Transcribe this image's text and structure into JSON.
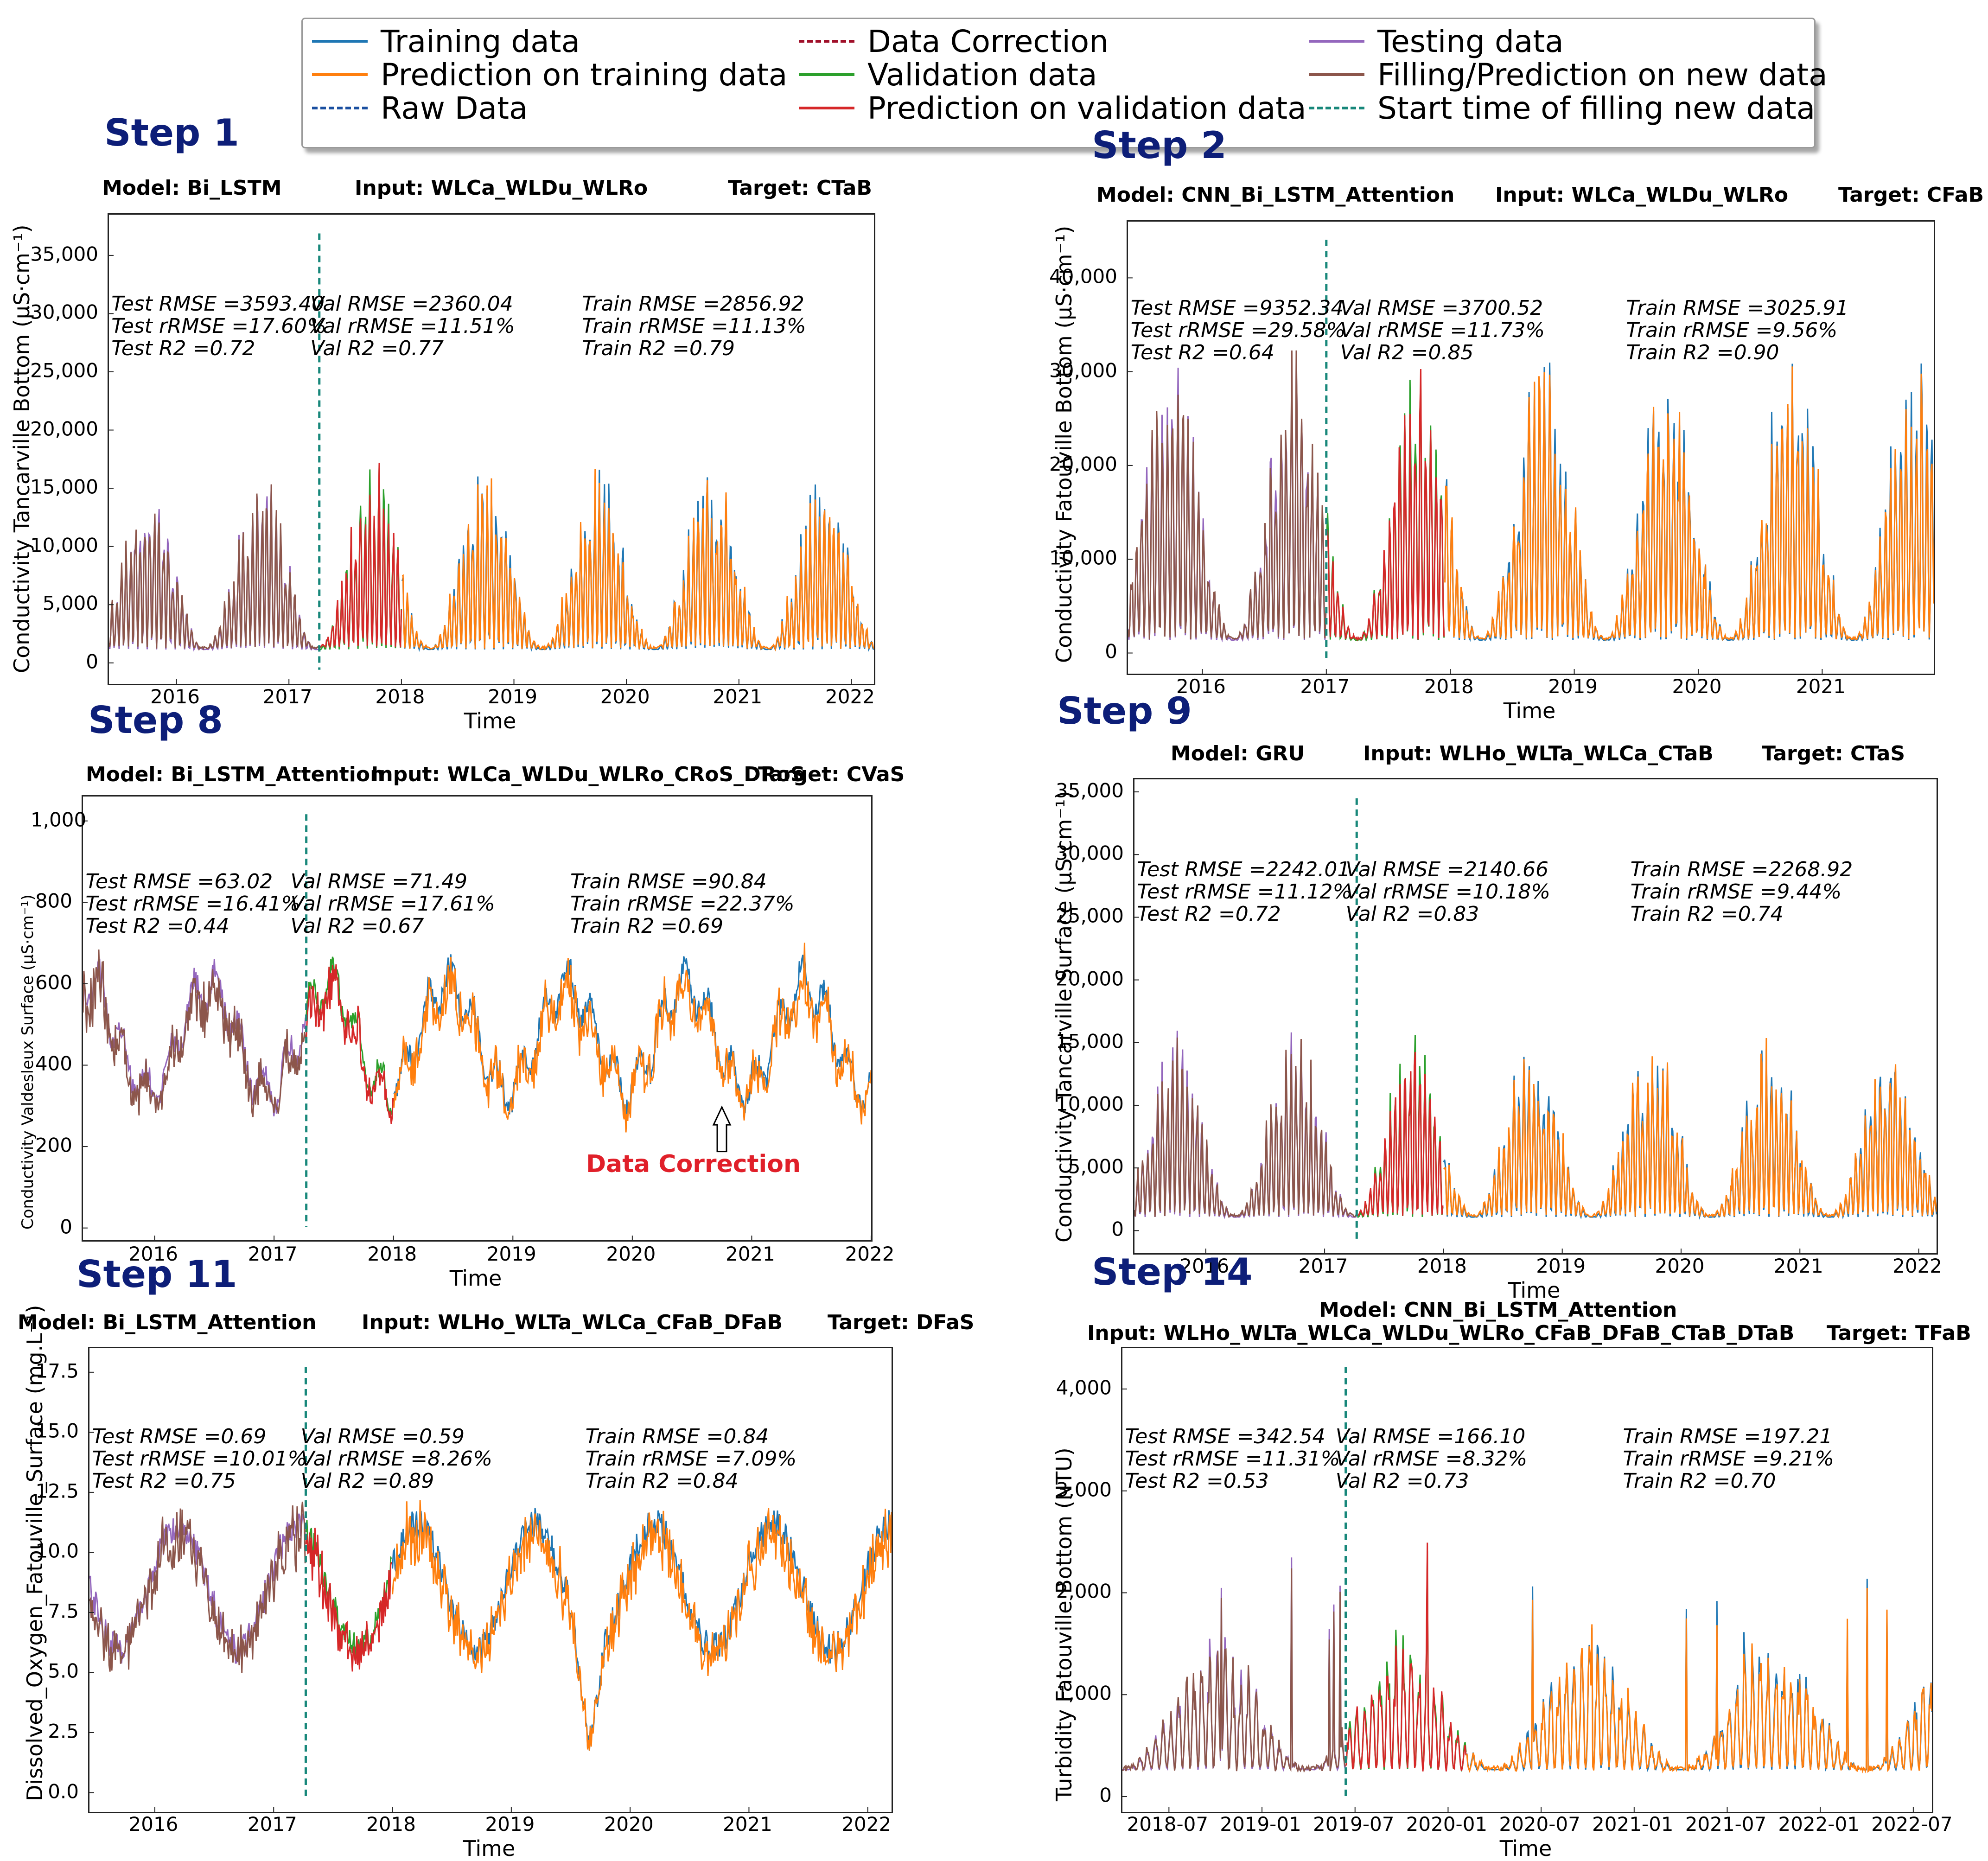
{
  "legend": {
    "items": [
      {
        "label": "Training data",
        "color": "#1f77b4",
        "style": "solid"
      },
      {
        "label": "Prediction on training data",
        "color": "#ff7f0e",
        "style": "solid"
      },
      {
        "label": "Raw Data",
        "color": "#1a4fa0",
        "style": "dashdot"
      },
      {
        "label": "Data Correction",
        "color": "#a0102a",
        "style": "dashdot"
      },
      {
        "label": "Validation data",
        "color": "#2ca02c",
        "style": "solid"
      },
      {
        "label": "Prediction on validation data",
        "color": "#d62728",
        "style": "solid"
      },
      {
        "label": "Testing data",
        "color": "#9467bd",
        "style": "solid"
      },
      {
        "label": "Filling/Prediction on new data",
        "color": "#8c564b",
        "style": "solid"
      },
      {
        "label": "Start time of filling new data",
        "color": "#17877a",
        "style": "dashed"
      }
    ]
  },
  "chart_data": [
    {
      "step": "Step 1",
      "type": "line",
      "model": "Model: Bi_LSTM",
      "input": "Input: WLCa_WLDu_WLRo",
      "target": "Target: CTaB",
      "ylabel": "Conductivity  Tancarville  Bottom  (µS·cm⁻¹)",
      "xlabel": "Time",
      "xlim": [
        2015.4,
        2022.2
      ],
      "ylim": [
        -1800,
        38500
      ],
      "yticks": [
        0,
        5000,
        10000,
        15000,
        20000,
        25000,
        30000,
        35000
      ],
      "ytick_labels": [
        "0",
        "5,000",
        "10,000",
        "15,000",
        "20,000",
        "25,000",
        "30,000",
        "35,000"
      ],
      "xticks": [
        2016,
        2017,
        2018,
        2019,
        2020,
        2021,
        2022
      ],
      "xtick_labels": [
        "2016",
        "2017",
        "2018",
        "2019",
        "2020",
        "2021",
        "2022"
      ],
      "split_time": 2017.27,
      "val_end": 2018.0,
      "metrics": {
        "test": [
          "Test RMSE =3593.40",
          "Test rRMSE =17.60%",
          "Test R2 =0.72"
        ],
        "val": [
          "Val RMSE =2360.04",
          "Val rRMSE =11.51%",
          "Val R2 =0.77"
        ],
        "train": [
          "Train RMSE =2856.92",
          "Train rRMSE =11.13%",
          "Train R2 =0.79"
        ]
      }
    },
    {
      "step": "Step 2",
      "type": "line",
      "model": "Model: CNN_Bi_LSTM_Attention",
      "input": "Input: WLCa_WLDu_WLRo",
      "target": "Target: CFaB",
      "ylabel": "Conductivity  Fatouville  Bottom  (µS·cm⁻¹)",
      "xlabel": "Time",
      "xlim": [
        2015.4,
        2021.9
      ],
      "ylim": [
        -2200,
        46000
      ],
      "yticks": [
        0,
        10000,
        20000,
        30000,
        40000
      ],
      "ytick_labels": [
        "0",
        "10,000",
        "20,000",
        "30,000",
        "40,000"
      ],
      "xticks": [
        2016,
        2017,
        2018,
        2019,
        2020,
        2021
      ],
      "xtick_labels": [
        "2016",
        "2017",
        "2018",
        "2019",
        "2020",
        "2021"
      ],
      "split_time": 2017.0,
      "val_end": 2017.95,
      "metrics": {
        "test": [
          "Test RMSE =9352.34",
          "Test rRMSE =29.58%",
          "Test R2 =0.64"
        ],
        "val": [
          "Val RMSE =3700.52",
          "Val rRMSE =11.73%",
          "Val R2 =0.85"
        ],
        "train": [
          "Train RMSE =3025.91",
          "Train rRMSE =9.56%",
          "Train R2 =0.90"
        ]
      }
    },
    {
      "step": "Step 8",
      "type": "line",
      "model": "Model: Bi_LSTM_Attention",
      "input": "Input: WLCa_WLDu_WLRo_CRoS_DRoS",
      "target": "Target: CVaS",
      "ylabel": "Conductivity  Valdesleux  Surface  (µS·cm⁻¹)",
      "xlabel": "Time",
      "xlim": [
        2015.4,
        2022.0
      ],
      "ylim": [
        -30,
        1060
      ],
      "yticks": [
        0,
        200,
        400,
        600,
        800,
        1000
      ],
      "ytick_labels": [
        "0",
        "200",
        "400",
        "600",
        "800",
        "1,000"
      ],
      "xticks": [
        2016,
        2017,
        2018,
        2019,
        2020,
        2021,
        2022
      ],
      "xtick_labels": [
        "2016",
        "2017",
        "2018",
        "2019",
        "2020",
        "2021",
        "2022"
      ],
      "split_time": 2017.27,
      "val_end": 2018.0,
      "annotation": "Data Correction",
      "metrics": {
        "test": [
          "Test RMSE =63.02",
          "Test rRMSE =16.41%",
          "Test R2 =0.44"
        ],
        "val": [
          "Val RMSE =71.49",
          "Val rRMSE =17.61%",
          "Val R2 =0.67"
        ],
        "train": [
          "Train RMSE =90.84",
          "Train rRMSE =22.37%",
          "Train R2 =0.69"
        ]
      }
    },
    {
      "step": "Step 9",
      "type": "line",
      "model": "Model: GRU",
      "input": "Input: WLHo_WLTa_WLCa_CTaB",
      "target": "Target: CTaS",
      "ylabel": "Conductivity  Tancarville  Surface  (µS·cm⁻¹)",
      "xlabel": "Time",
      "xlim": [
        2015.4,
        2022.15
      ],
      "ylim": [
        -1800,
        36000
      ],
      "yticks": [
        0,
        5000,
        10000,
        15000,
        20000,
        25000,
        30000,
        35000
      ],
      "ytick_labels": [
        "0",
        "5,000",
        "10,000",
        "15,000",
        "20,000",
        "25,000",
        "30,000",
        "35,000"
      ],
      "xticks": [
        2016,
        2017,
        2018,
        2019,
        2020,
        2021,
        2022
      ],
      "xtick_labels": [
        "2016",
        "2017",
        "2018",
        "2019",
        "2020",
        "2021",
        "2022"
      ],
      "split_time": 2017.27,
      "val_end": 2018.0,
      "metrics": {
        "test": [
          "Test RMSE =2242.01",
          "Test rRMSE =11.12%",
          "Test R2 =0.72"
        ],
        "val": [
          "Val RMSE =2140.66",
          "Val rRMSE =10.18%",
          "Val R2 =0.83"
        ],
        "train": [
          "Train RMSE =2268.92",
          "Train rRMSE =9.44%",
          "Train R2 =0.74"
        ]
      }
    },
    {
      "step": "Step 11",
      "type": "line",
      "model": "Model: Bi_LSTM_Attention",
      "input": "Input: WLHo_WLTa_WLCa_CFaB_DFaB",
      "target": "Target: DFaS",
      "ylabel": "Dissolved_Oxygen_Fatouville_Surface (mg.L⁻¹)",
      "xlabel": "Time",
      "xlim": [
        2015.45,
        2022.2
      ],
      "ylim": [
        -0.8,
        18.5
      ],
      "yticks": [
        0,
        2.5,
        5.0,
        7.5,
        10.0,
        12.5,
        15.0,
        17.5
      ],
      "ytick_labels": [
        "0.0",
        "2.5",
        "5.0",
        "7.5",
        "10.0",
        "12.5",
        "15.0",
        "17.5"
      ],
      "xticks": [
        2016,
        2017,
        2018,
        2019,
        2020,
        2021,
        2022
      ],
      "xtick_labels": [
        "2016",
        "2017",
        "2018",
        "2019",
        "2020",
        "2021",
        "2022"
      ],
      "split_time": 2017.27,
      "val_end": 2018.0,
      "metrics": {
        "test": [
          "Test RMSE =0.69",
          "Test rRMSE =10.01%",
          "Test R2 =0.75"
        ],
        "val": [
          "Val RMSE =0.59",
          "Val rRMSE =8.26%",
          "Val R2 =0.89"
        ],
        "train": [
          "Train RMSE =0.84",
          "Train rRMSE =7.09%",
          "Train R2 =0.84"
        ]
      }
    },
    {
      "step": "Step 14",
      "type": "line",
      "model": "Model: CNN_Bi_LSTM_Attention",
      "input": "Input: WLHo_WLTa_WLCa_WLDu_WLRo_CFaB_DFaB_CTaB_DTaB",
      "target": "Target: TFaB",
      "ylabel": "Turbidity  Fatouville  Bottom (NTU)",
      "xlabel": "Time",
      "xlim": [
        2018.25,
        2022.6
      ],
      "ylim": [
        -150,
        4400
      ],
      "yticks": [
        0,
        1000,
        2000,
        3000,
        4000
      ],
      "ytick_labels": [
        "0",
        "1,000",
        "2,000",
        "3,000",
        "4,000"
      ],
      "xticks": [
        2018.5,
        2019.0,
        2019.5,
        2020.0,
        2020.5,
        2021.0,
        2021.5,
        2022.0,
        2022.5
      ],
      "xtick_labels": [
        "2018-07",
        "2019-01",
        "2019-07",
        "2020-01",
        "2020-07",
        "2021-01",
        "2021-07",
        "2022-01",
        "2022-07"
      ],
      "split_time": 2019.45,
      "val_end": 2020.1,
      "metrics": {
        "test": [
          "Test RMSE =342.54",
          "Test rRMSE =11.31%",
          "Test R2 =0.53"
        ],
        "val": [
          "Val RMSE =166.10",
          "Val rRMSE =8.32%",
          "Val R2 =0.73"
        ],
        "train": [
          "Train RMSE =197.21",
          "Train rRMSE =9.21%",
          "Train R2 =0.70"
        ]
      }
    }
  ]
}
